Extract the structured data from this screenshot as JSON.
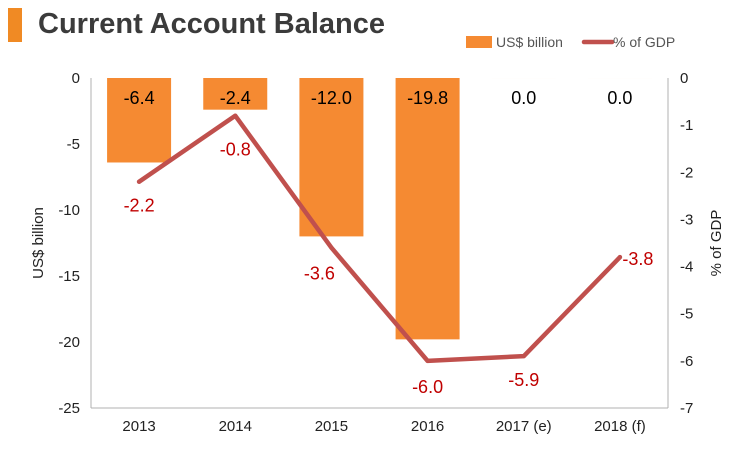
{
  "chart_data": {
    "type": "bar+line",
    "title": "Current Account Balance",
    "categories": [
      "2013",
      "2014",
      "2015",
      "2016",
      "2017 (e)",
      "2018 (f)"
    ],
    "series": [
      {
        "name": "US$ billion",
        "type": "bar",
        "axis": "left",
        "color": "#f58a32",
        "values": [
          -6.4,
          -2.4,
          -12.0,
          -19.8,
          0.0,
          0.0
        ],
        "labels": [
          "-6.4",
          "-2.4",
          "-12.0",
          "-19.8",
          "0.0",
          "0.0"
        ]
      },
      {
        "name": "% of GDP",
        "type": "line",
        "axis": "right",
        "color": "#c0504d",
        "values": [
          -2.2,
          -0.8,
          -3.6,
          -6.0,
          -5.9,
          -3.8
        ],
        "labels": [
          "-2.2",
          "-0.8",
          "-3.6",
          "-6.0",
          "-5.9",
          "-3.8"
        ]
      }
    ],
    "ylabel": "US$ billion",
    "y2label": "% of GDP",
    "ylim": [
      -25,
      0
    ],
    "y2lim": [
      -7,
      0
    ],
    "yticks": [
      "0",
      "-5",
      "-10",
      "-15",
      "-20",
      "-25"
    ],
    "y2ticks": [
      "0",
      "-1",
      "-2",
      "-3",
      "-4",
      "-5",
      "-6",
      "-7"
    ],
    "legend": "top-right",
    "grid": false
  }
}
